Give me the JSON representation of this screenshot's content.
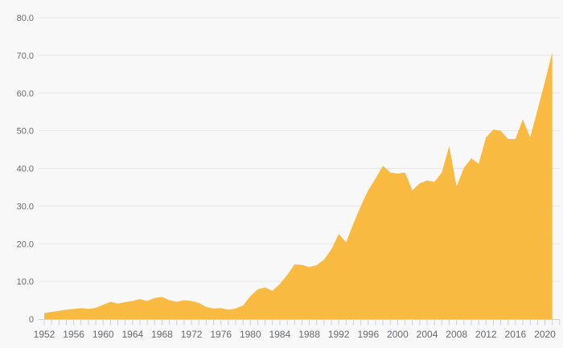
{
  "chart_data": {
    "type": "area",
    "x": [
      1952,
      1953,
      1954,
      1955,
      1956,
      1957,
      1958,
      1959,
      1960,
      1961,
      1962,
      1963,
      1964,
      1965,
      1966,
      1967,
      1968,
      1969,
      1970,
      1971,
      1972,
      1973,
      1974,
      1975,
      1976,
      1977,
      1978,
      1979,
      1980,
      1981,
      1982,
      1983,
      1984,
      1985,
      1986,
      1987,
      1988,
      1989,
      1990,
      1991,
      1992,
      1993,
      1994,
      1995,
      1996,
      1997,
      1998,
      1999,
      2000,
      2001,
      2002,
      2003,
      2004,
      2005,
      2006,
      2007,
      2008,
      2009,
      2010,
      2011,
      2012,
      2013,
      2014,
      2015,
      2016,
      2017,
      2018,
      2019,
      2020,
      2021
    ],
    "values": [
      1.6,
      1.9,
      2.2,
      2.5,
      2.7,
      2.9,
      2.7,
      3.0,
      3.8,
      4.6,
      4.1,
      4.5,
      4.8,
      5.3,
      4.8,
      5.6,
      5.9,
      5.0,
      4.6,
      5.0,
      4.8,
      4.3,
      3.2,
      2.8,
      2.9,
      2.5,
      2.8,
      3.6,
      6.1,
      7.9,
      8.4,
      7.5,
      9.3,
      11.7,
      14.5,
      14.4,
      13.8,
      14.3,
      15.8,
      18.5,
      22.6,
      20.4,
      25.4,
      30.0,
      34.2,
      37.3,
      40.7,
      38.9,
      38.6,
      38.9,
      34.2,
      36.0,
      36.8,
      36.4,
      38.9,
      45.9,
      35.2,
      40.1,
      42.7,
      41.2,
      48.2,
      50.3,
      50.0,
      47.8,
      47.8,
      53.0,
      48.2,
      55.5,
      63.0,
      70.8
    ],
    "xlim": [
      1952,
      2022
    ],
    "ylim": [
      0,
      80
    ],
    "grid": "horizontal",
    "legend": "none",
    "x_axis": {
      "first_tick_year": 1952,
      "last_tick_year": 2022,
      "label_step_years": 4,
      "tick_labels": [
        "1952",
        "1956",
        "1960",
        "1964",
        "1968",
        "1972",
        "1976",
        "1980",
        "1984",
        "1988",
        "1992",
        "1996",
        "2000",
        "2004",
        "2008",
        "2012",
        "2016",
        "2020"
      ]
    },
    "y_axis": {
      "tick_values": [
        0,
        10,
        20,
        30,
        40,
        50,
        60,
        70,
        80
      ],
      "tick_labels": [
        "0",
        "10.0",
        "20.0",
        "30.0",
        "40.0",
        "50.0",
        "60.0",
        "70.0",
        "80.0"
      ]
    },
    "colors": {
      "area": "#f8ba40",
      "grid": "#e6e6e8",
      "axis": "#c9cfe1",
      "labels": "#67696d",
      "background": "#f8f8f8"
    }
  }
}
